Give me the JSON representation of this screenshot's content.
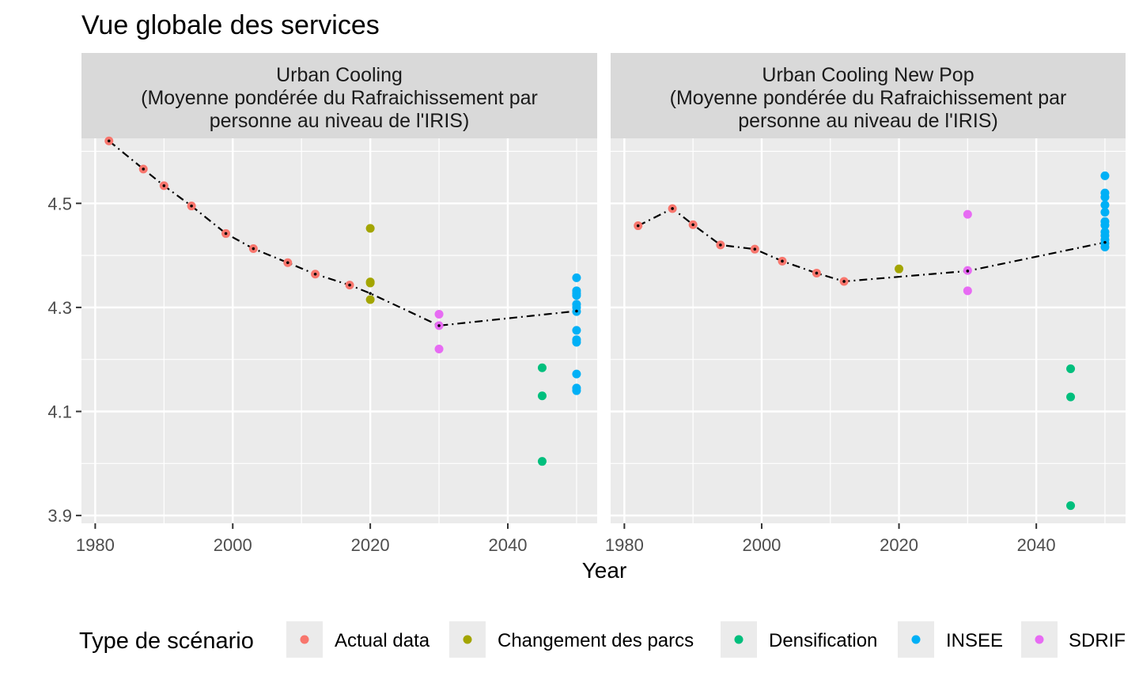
{
  "chart_data": {
    "type": "scatter",
    "title": "Vue globale des services",
    "xlabel": "Year",
    "ylabel": "",
    "xlim": [
      1978,
      2053
    ],
    "ylim": [
      3.885,
      4.625
    ],
    "x_ticks": [
      1980,
      2000,
      2020,
      2040
    ],
    "x_tick_labels": [
      "1980",
      "2000",
      "2020",
      "2040"
    ],
    "y_ticks": [
      3.9,
      4.1,
      4.3,
      4.5
    ],
    "y_tick_labels": [
      "3.9",
      "4.1",
      "4.3",
      "4.5"
    ],
    "grid": true,
    "legend": {
      "title": "Type de scénario",
      "position": "bottom",
      "entries": [
        {
          "name": "Actual data",
          "color": "#F8766D"
        },
        {
          "name": "Changement des parcs",
          "color": "#A3A500"
        },
        {
          "name": "Densification",
          "color": "#00BF7D"
        },
        {
          "name": "INSEE",
          "color": "#00B0F6"
        },
        {
          "name": "SDRIF",
          "color": "#E76BF3"
        }
      ]
    },
    "panels": [
      {
        "strip_lines": [
          "Urban Cooling",
          "(Moyenne pondérée du Rafraichissement par",
          "personne au niveau de l'IRIS)"
        ],
        "series": [
          {
            "name": "Actual data",
            "points": [
              [
                1982,
                4.62
              ],
              [
                1987,
                4.566
              ],
              [
                1990,
                4.534
              ],
              [
                1994,
                4.495
              ],
              [
                1999,
                4.442
              ],
              [
                2003,
                4.413
              ],
              [
                2008,
                4.386
              ],
              [
                2012,
                4.364
              ],
              [
                2017,
                4.343
              ]
            ]
          },
          {
            "name": "Changement des parcs",
            "points": [
              [
                2020,
                4.452
              ],
              [
                2020,
                4.349
              ],
              [
                2020,
                4.347
              ],
              [
                2020,
                4.315
              ]
            ]
          },
          {
            "name": "Densification",
            "points": [
              [
                2045,
                4.184
              ],
              [
                2045,
                4.13
              ],
              [
                2045,
                4.004
              ]
            ]
          },
          {
            "name": "INSEE",
            "points": [
              [
                2050,
                4.357
              ],
              [
                2050,
                4.332
              ],
              [
                2050,
                4.327
              ],
              [
                2050,
                4.323
              ],
              [
                2050,
                4.306
              ],
              [
                2050,
                4.3
              ],
              [
                2050,
                4.292
              ],
              [
                2050,
                4.256
              ],
              [
                2050,
                4.238
              ],
              [
                2050,
                4.233
              ],
              [
                2050,
                4.172
              ],
              [
                2050,
                4.145
              ],
              [
                2050,
                4.14
              ]
            ]
          },
          {
            "name": "SDRIF",
            "points": [
              [
                2030,
                4.287
              ],
              [
                2030,
                4.265
              ],
              [
                2030,
                4.22
              ]
            ]
          }
        ],
        "trend_line": [
          [
            1982,
            4.62
          ],
          [
            1987,
            4.566
          ],
          [
            1990,
            4.534
          ],
          [
            1994,
            4.495
          ],
          [
            1999,
            4.442
          ],
          [
            2003,
            4.413
          ],
          [
            2008,
            4.386
          ],
          [
            2012,
            4.364
          ],
          [
            2017,
            4.343
          ],
          [
            2020,
            4.327
          ],
          [
            2030,
            4.265
          ],
          [
            2050,
            4.293
          ]
        ]
      },
      {
        "strip_lines": [
          "Urban Cooling New Pop",
          "(Moyenne pondérée du Rafraichissement par",
          "personne au niveau de l'IRIS)"
        ],
        "series": [
          {
            "name": "Actual data",
            "points": [
              [
                1982,
                4.457
              ],
              [
                1987,
                4.49
              ],
              [
                1990,
                4.459
              ],
              [
                1994,
                4.42
              ],
              [
                1999,
                4.412
              ],
              [
                2003,
                4.389
              ],
              [
                2008,
                4.366
              ],
              [
                2012,
                4.35
              ]
            ]
          },
          {
            "name": "Changement des parcs",
            "points": [
              [
                2020,
                4.374
              ]
            ]
          },
          {
            "name": "Densification",
            "points": [
              [
                2045,
                4.182
              ],
              [
                2045,
                4.128
              ],
              [
                2045,
                3.919
              ]
            ]
          },
          {
            "name": "INSEE",
            "points": [
              [
                2050,
                4.553
              ],
              [
                2050,
                4.52
              ],
              [
                2050,
                4.512
              ],
              [
                2050,
                4.497
              ],
              [
                2050,
                4.483
              ],
              [
                2050,
                4.465
              ],
              [
                2050,
                4.458
              ],
              [
                2050,
                4.445
              ],
              [
                2050,
                4.438
              ],
              [
                2050,
                4.43
              ],
              [
                2050,
                4.423
              ],
              [
                2050,
                4.416
              ]
            ]
          },
          {
            "name": "SDRIF",
            "points": [
              [
                2030,
                4.479
              ],
              [
                2030,
                4.371
              ],
              [
                2030,
                4.332
              ]
            ]
          }
        ],
        "trend_line": [
          [
            1982,
            4.457
          ],
          [
            1987,
            4.49
          ],
          [
            1990,
            4.459
          ],
          [
            1994,
            4.42
          ],
          [
            1999,
            4.412
          ],
          [
            2003,
            4.389
          ],
          [
            2008,
            4.366
          ],
          [
            2012,
            4.35
          ],
          [
            2030,
            4.37
          ],
          [
            2050,
            4.425
          ]
        ]
      }
    ]
  }
}
